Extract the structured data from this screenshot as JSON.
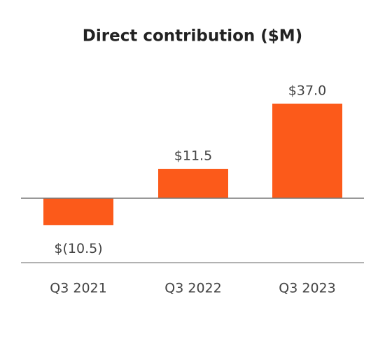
{
  "chart_data": {
    "type": "bar",
    "title": "Direct contribution ($M)",
    "categories": [
      "Q3 2021",
      "Q3 2022",
      "Q3 2023"
    ],
    "values": [
      -10.5,
      11.5,
      37.0
    ],
    "value_labels": [
      "$(10.5)",
      "$11.5",
      "$37.0"
    ],
    "color": "#fc5a1a"
  }
}
